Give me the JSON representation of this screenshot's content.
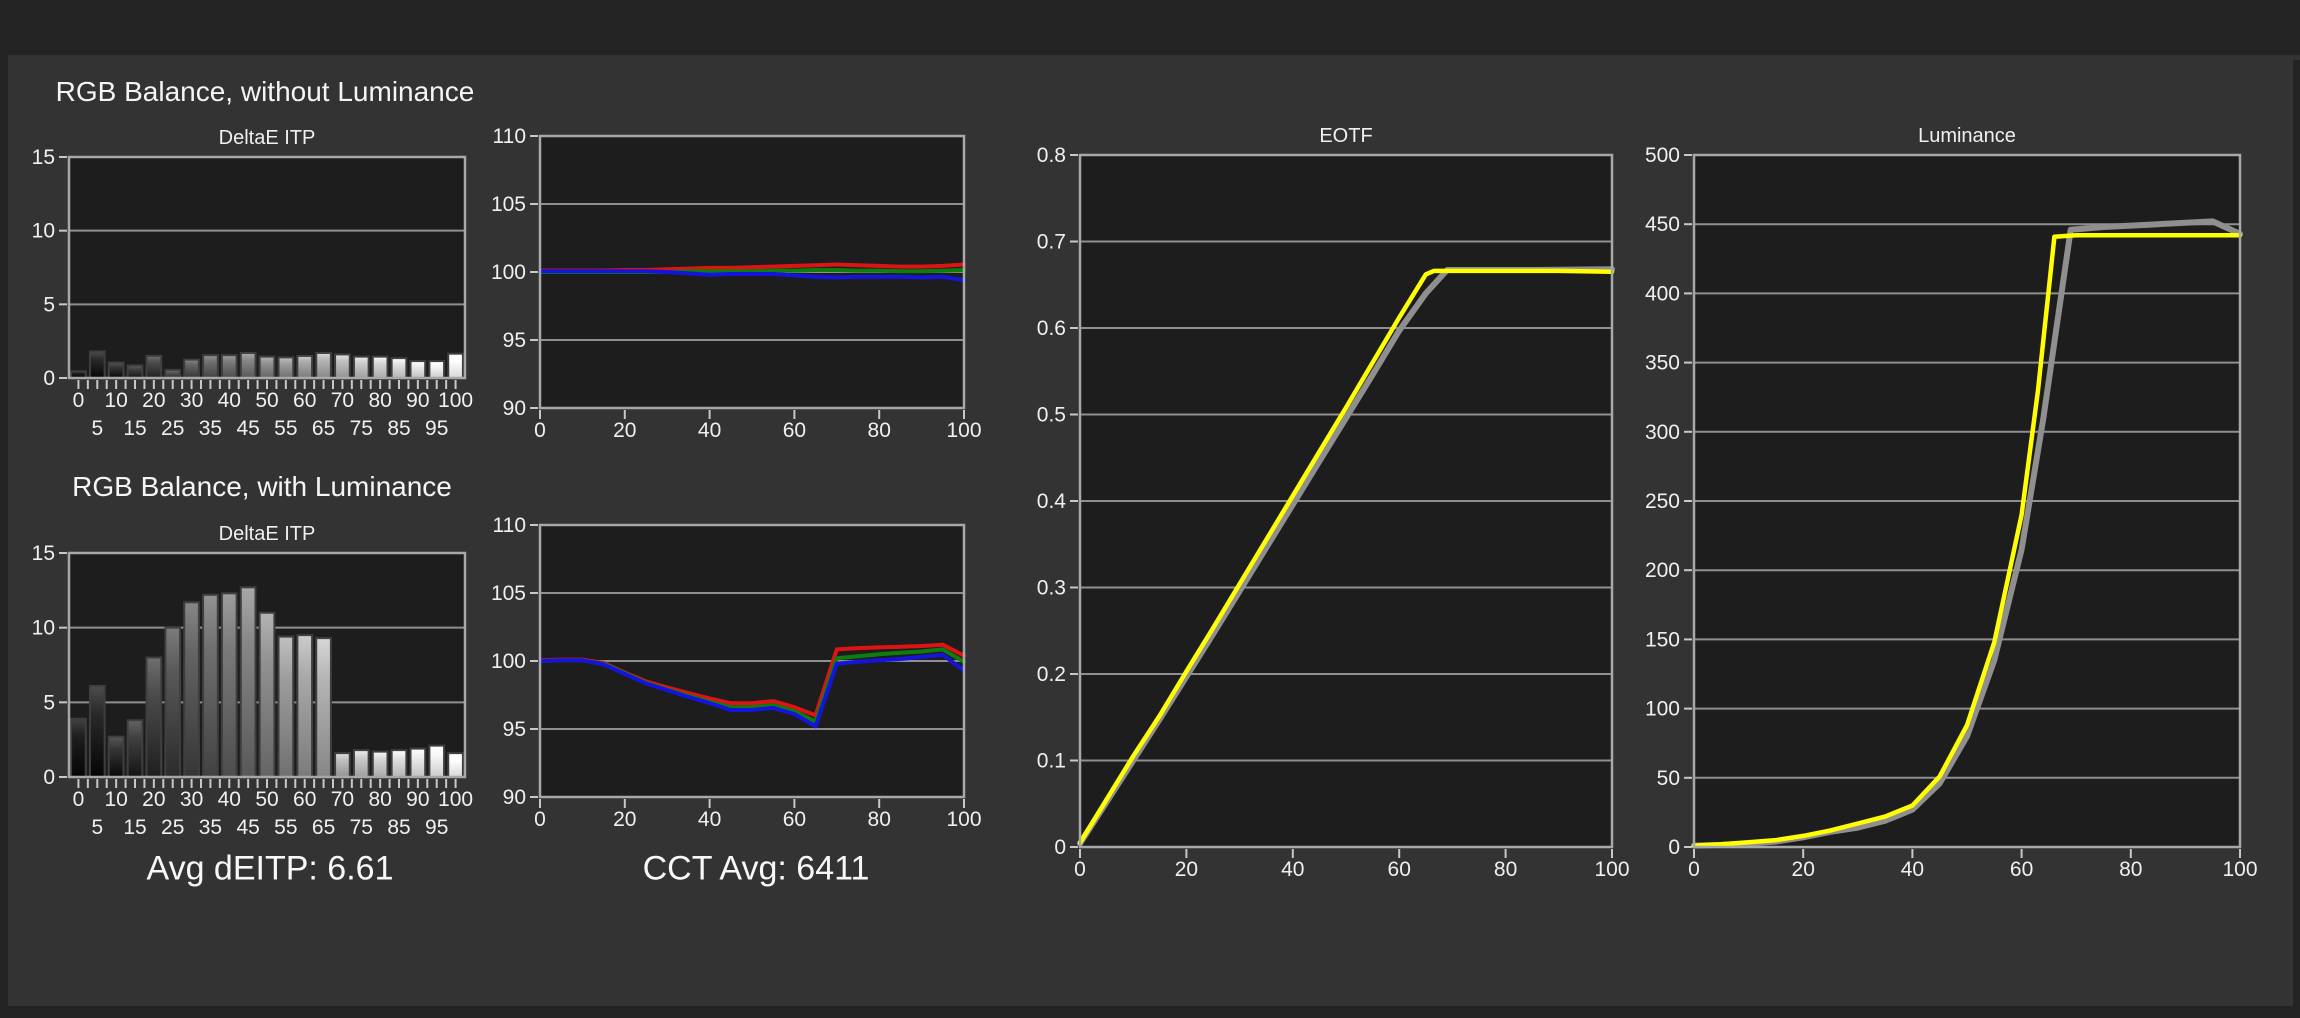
{
  "page": {
    "background": "#333333",
    "frame_color": "#232323",
    "plot_background": "#1d1d1d",
    "grid_color": "#8f8f8f",
    "border_color": "#a8a8a8",
    "tick_color": "#c8c8c8",
    "text_color": "#f0f0f0",
    "bar_outline": "#3f3f3f"
  },
  "colors": {
    "red": "#de1414",
    "green": "#0d7e0d",
    "blue": "#1414dd",
    "yellow": "#ffff00",
    "reference_gray": "#8f8f8f"
  },
  "sections": {
    "left_top_title": "RGB Balance, without Luminance",
    "left_bottom_title": "RGB Balance, with Luminance",
    "avg_deitp": "Avg dEITP: 6.61",
    "cct_avg": "CCT Avg: 6411"
  },
  "chart_data": [
    {
      "id": "deltae-no-lum",
      "type": "bar",
      "title": "DeltaE ITP",
      "ylim": [
        0,
        15
      ],
      "yticks": [
        0,
        5,
        10,
        15
      ],
      "ytick_labels": [
        "0",
        "5",
        "10",
        "15"
      ],
      "grid": true,
      "categories": [
        0,
        5,
        10,
        15,
        20,
        25,
        30,
        35,
        40,
        45,
        50,
        55,
        60,
        65,
        70,
        75,
        80,
        85,
        90,
        95,
        100
      ],
      "xtick_labels": [
        "0",
        "5",
        "10",
        "15",
        "20",
        "25",
        "30",
        "35",
        "40",
        "45",
        "50",
        "55",
        "60",
        "65",
        "70",
        "75",
        "80",
        "85",
        "90",
        "95",
        "100"
      ],
      "bar_style": "grayscale-by-level",
      "values": [
        0.45,
        1.8,
        1.05,
        0.85,
        1.5,
        0.55,
        1.25,
        1.55,
        1.55,
        1.7,
        1.45,
        1.4,
        1.5,
        1.7,
        1.6,
        1.45,
        1.45,
        1.35,
        1.15,
        1.15,
        1.65
      ]
    },
    {
      "id": "deltae-with-lum",
      "type": "bar",
      "title": "DeltaE ITP",
      "ylim": [
        0,
        15
      ],
      "yticks": [
        0,
        5,
        10,
        15
      ],
      "ytick_labels": [
        "0",
        "5",
        "10",
        "15"
      ],
      "grid": true,
      "categories": [
        0,
        5,
        10,
        15,
        20,
        25,
        30,
        35,
        40,
        45,
        50,
        55,
        60,
        65,
        70,
        75,
        80,
        85,
        90,
        95,
        100
      ],
      "xtick_labels": [
        "0",
        "5",
        "10",
        "15",
        "20",
        "25",
        "30",
        "35",
        "40",
        "45",
        "50",
        "55",
        "60",
        "65",
        "70",
        "75",
        "80",
        "85",
        "90",
        "95",
        "100"
      ],
      "bar_style": "grayscale-by-level",
      "values": [
        3.9,
        6.1,
        2.7,
        3.8,
        8.0,
        10.0,
        11.7,
        12.2,
        12.3,
        12.7,
        11.0,
        9.4,
        9.5,
        9.3,
        1.6,
        1.8,
        1.7,
        1.8,
        1.9,
        2.1,
        1.6
      ]
    },
    {
      "id": "rgb-no-lum",
      "type": "line",
      "title": null,
      "ylim": [
        90,
        110
      ],
      "yticks": [
        90,
        95,
        100,
        105,
        110
      ],
      "ytick_labels": [
        "90",
        "95",
        "100",
        "105",
        "110"
      ],
      "xlim": [
        0,
        100
      ],
      "xticks": [
        0,
        20,
        40,
        60,
        80,
        100
      ],
      "xtick_labels": [
        "0",
        "20",
        "40",
        "60",
        "80",
        "100"
      ],
      "grid": true,
      "series": [
        {
          "name": "red",
          "color": "#de1414",
          "width": 4,
          "x": [
            0,
            5,
            10,
            15,
            20,
            25,
            30,
            35,
            40,
            45,
            50,
            55,
            60,
            65,
            70,
            75,
            80,
            85,
            90,
            95,
            100
          ],
          "y": [
            100.1,
            100.1,
            100.1,
            100.1,
            100.15,
            100.15,
            100.2,
            100.25,
            100.3,
            100.3,
            100.35,
            100.4,
            100.45,
            100.5,
            100.55,
            100.5,
            100.45,
            100.4,
            100.4,
            100.45,
            100.55
          ]
        },
        {
          "name": "green",
          "color": "#0d7e0d",
          "width": 4,
          "x": [
            0,
            5,
            10,
            15,
            20,
            25,
            30,
            35,
            40,
            45,
            50,
            55,
            60,
            65,
            70,
            75,
            80,
            85,
            90,
            95,
            100
          ],
          "y": [
            100.0,
            100.0,
            100.0,
            100.0,
            100.0,
            100.0,
            100.0,
            100.05,
            100.05,
            100.05,
            100.05,
            100.1,
            100.1,
            100.15,
            100.15,
            100.1,
            100.1,
            100.05,
            100.05,
            100.1,
            100.15
          ]
        },
        {
          "name": "blue",
          "color": "#1414dd",
          "width": 4,
          "x": [
            0,
            5,
            10,
            15,
            20,
            25,
            30,
            35,
            40,
            45,
            50,
            55,
            60,
            65,
            70,
            75,
            80,
            85,
            90,
            95,
            100
          ],
          "y": [
            100.05,
            100.05,
            100.05,
            100.05,
            100.05,
            100.05,
            100.0,
            99.9,
            99.8,
            99.85,
            99.85,
            99.85,
            99.75,
            99.65,
            99.6,
            99.65,
            99.65,
            99.65,
            99.6,
            99.65,
            99.4
          ]
        }
      ]
    },
    {
      "id": "rgb-with-lum",
      "type": "line",
      "title": null,
      "ylim": [
        90,
        110
      ],
      "yticks": [
        90,
        95,
        100,
        105,
        110
      ],
      "ytick_labels": [
        "90",
        "95",
        "100",
        "105",
        "110"
      ],
      "xlim": [
        0,
        100
      ],
      "xticks": [
        0,
        20,
        40,
        60,
        80,
        100
      ],
      "xtick_labels": [
        "0",
        "20",
        "40",
        "60",
        "80",
        "100"
      ],
      "grid": true,
      "series": [
        {
          "name": "red",
          "color": "#de1414",
          "width": 4,
          "x": [
            0,
            5,
            10,
            15,
            20,
            25,
            30,
            35,
            40,
            45,
            50,
            55,
            60,
            65,
            70,
            75,
            80,
            85,
            90,
            95,
            100
          ],
          "y": [
            100.05,
            100.1,
            100.1,
            99.85,
            99.15,
            98.5,
            98.05,
            97.65,
            97.25,
            96.9,
            96.9,
            97.05,
            96.6,
            96.0,
            100.85,
            100.95,
            101.0,
            101.05,
            101.1,
            101.2,
            100.4
          ]
        },
        {
          "name": "green",
          "color": "#0d7e0d",
          "width": 4,
          "x": [
            0,
            5,
            10,
            15,
            20,
            25,
            30,
            35,
            40,
            45,
            50,
            55,
            60,
            65,
            70,
            75,
            80,
            85,
            90,
            95,
            100
          ],
          "y": [
            100.0,
            100.05,
            100.05,
            99.8,
            99.1,
            98.4,
            97.9,
            97.45,
            97.0,
            96.6,
            96.6,
            96.75,
            96.3,
            95.55,
            100.2,
            100.35,
            100.5,
            100.6,
            100.7,
            100.85,
            99.95
          ]
        },
        {
          "name": "blue",
          "color": "#1414dd",
          "width": 4,
          "x": [
            0,
            5,
            10,
            15,
            20,
            25,
            30,
            35,
            40,
            45,
            50,
            55,
            60,
            65,
            70,
            75,
            80,
            85,
            90,
            95,
            100
          ],
          "y": [
            100.0,
            100.05,
            100.05,
            99.75,
            99.05,
            98.35,
            97.85,
            97.35,
            96.9,
            96.4,
            96.4,
            96.55,
            96.1,
            95.2,
            99.8,
            99.95,
            100.05,
            100.15,
            100.3,
            100.45,
            99.3
          ]
        }
      ]
    },
    {
      "id": "eotf",
      "type": "line",
      "title": "EOTF",
      "ylim": [
        0,
        0.8
      ],
      "yticks": [
        0,
        0.1,
        0.2,
        0.3,
        0.4,
        0.5,
        0.6,
        0.7,
        0.8
      ],
      "ytick_labels": [
        "0",
        "0.1",
        "0.2",
        "0.3",
        "0.4",
        "0.5",
        "0.6",
        "0.7",
        "0.8"
      ],
      "xlim": [
        0,
        100
      ],
      "xticks": [
        0,
        20,
        40,
        60,
        80,
        100
      ],
      "xtick_labels": [
        "0",
        "20",
        "40",
        "60",
        "80",
        "100"
      ],
      "grid": true,
      "series": [
        {
          "name": "reference",
          "color": "#8f8f8f",
          "width": 6,
          "x": [
            0,
            5,
            10,
            15,
            20,
            25,
            30,
            35,
            40,
            45,
            50,
            55,
            60,
            65,
            69,
            75,
            85,
            100
          ],
          "y": [
            0.004,
            0.052,
            0.1,
            0.148,
            0.197,
            0.246,
            0.296,
            0.346,
            0.396,
            0.446,
            0.496,
            0.546,
            0.597,
            0.64,
            0.667,
            0.667,
            0.667,
            0.668
          ]
        },
        {
          "name": "measured",
          "color": "#ffff00",
          "width": 4.5,
          "x": [
            0,
            5,
            10,
            15,
            20,
            25,
            30,
            35,
            40,
            45,
            50,
            55,
            60,
            65,
            66.5,
            70,
            80,
            90,
            100
          ],
          "y": [
            0.005,
            0.055,
            0.105,
            0.152,
            0.203,
            0.253,
            0.304,
            0.355,
            0.406,
            0.457,
            0.508,
            0.56,
            0.612,
            0.662,
            0.666,
            0.666,
            0.666,
            0.666,
            0.665
          ]
        }
      ]
    },
    {
      "id": "luminance",
      "type": "line",
      "title": "Luminance",
      "ylim": [
        0,
        500
      ],
      "yticks": [
        0,
        50,
        100,
        150,
        200,
        250,
        300,
        350,
        400,
        450,
        500
      ],
      "ytick_labels": [
        "0",
        "50",
        "100",
        "150",
        "200",
        "250",
        "300",
        "350",
        "400",
        "450",
        "500"
      ],
      "xlim": [
        0,
        100
      ],
      "xticks": [
        0,
        20,
        40,
        60,
        80,
        100
      ],
      "xtick_labels": [
        "0",
        "20",
        "40",
        "60",
        "80",
        "100"
      ],
      "grid": true,
      "series": [
        {
          "name": "reference",
          "color": "#8f8f8f",
          "width": 6,
          "x": [
            0,
            5,
            10,
            15,
            20,
            25,
            30,
            35,
            40,
            45,
            50,
            55,
            60,
            64,
            69,
            75,
            85,
            95,
            100
          ],
          "y": [
            1,
            1.5,
            2.5,
            4,
            7,
            11,
            14,
            19,
            27,
            46,
            80,
            135,
            215,
            310,
            446,
            448,
            450,
            452,
            443
          ]
        },
        {
          "name": "measured",
          "color": "#ffff00",
          "width": 4.5,
          "x": [
            0,
            5,
            10,
            15,
            20,
            25,
            30,
            35,
            40,
            45,
            50,
            55,
            60,
            63,
            66,
            70,
            80,
            90,
            100
          ],
          "y": [
            1,
            2,
            3.5,
            5,
            8,
            12,
            17,
            22,
            30,
            51,
            88,
            148,
            240,
            330,
            441,
            442,
            442,
            442,
            442
          ]
        }
      ]
    }
  ]
}
